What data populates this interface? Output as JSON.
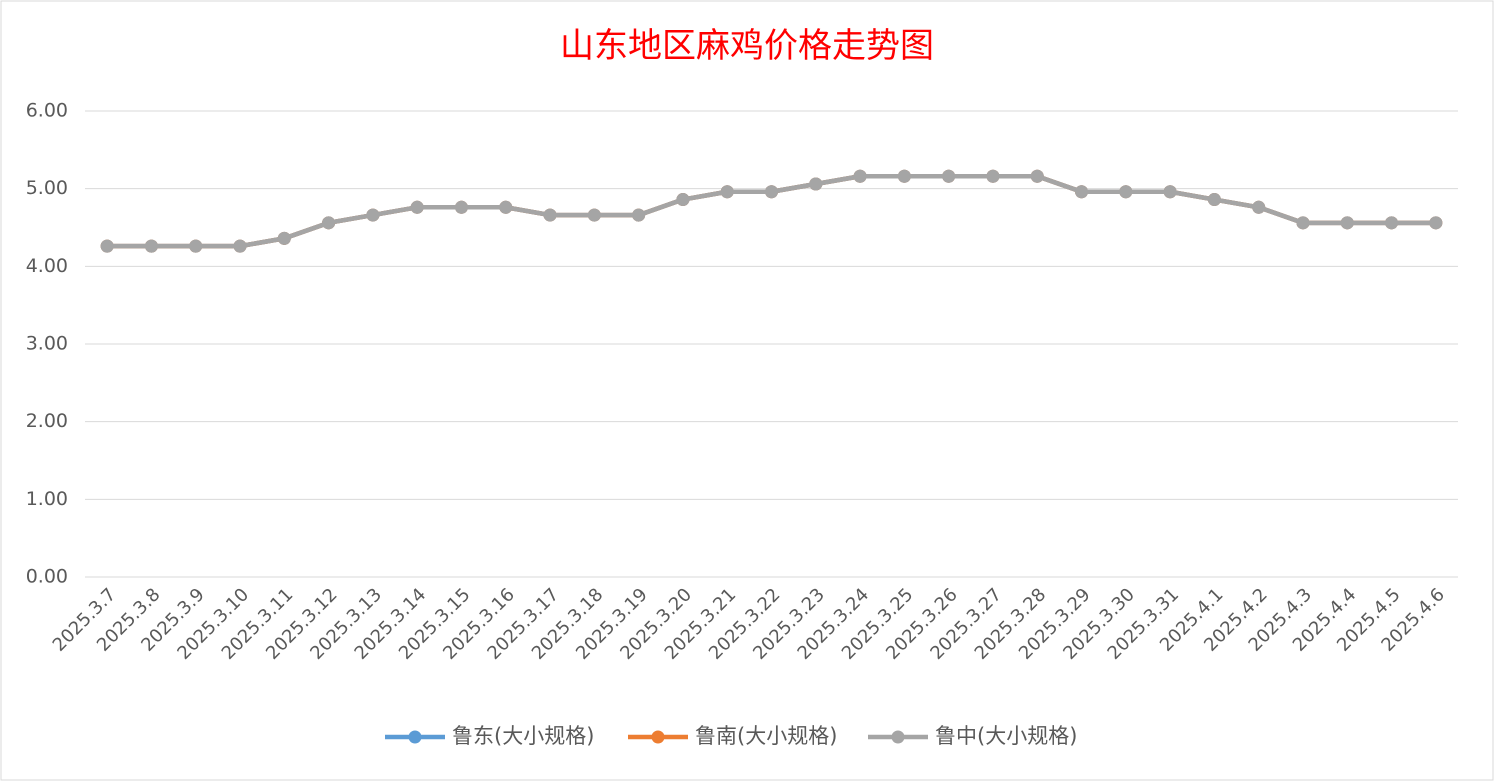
{
  "chart_data": {
    "type": "line",
    "title": "山东地区麻鸡价格走势图",
    "categories": [
      "2025.3.7",
      "2025.3.8",
      "2025.3.9",
      "2025.3.10",
      "2025.3.11",
      "2025.3.12",
      "2025.3.13",
      "2025.3.14",
      "2025.3.15",
      "2025.3.16",
      "2025.3.17",
      "2025.3.18",
      "2025.3.19",
      "2025.3.20",
      "2025.3.21",
      "2025.3.22",
      "2025.3.23",
      "2025.3.24",
      "2025.3.25",
      "2025.3.26",
      "2025.3.27",
      "2025.3.28",
      "2025.3.29",
      "2025.3.30",
      "2025.3.31",
      "2025.4.1",
      "2025.4.2",
      "2025.4.3",
      "2025.4.4",
      "2025.4.5",
      "2025.4.6"
    ],
    "series": [
      {
        "name": "鲁东(大小规格)",
        "color": "#5b9bd5",
        "values": [
          4.26,
          4.26,
          4.26,
          4.26,
          4.36,
          4.56,
          4.66,
          4.76,
          4.76,
          4.76,
          4.66,
          4.66,
          4.66,
          4.86,
          4.96,
          4.96,
          5.06,
          5.16,
          5.16,
          5.16,
          5.16,
          5.16,
          4.96,
          4.96,
          4.96,
          4.86,
          4.76,
          4.56,
          4.56,
          4.56,
          4.56
        ]
      },
      {
        "name": "鲁南(大小规格)",
        "color": "#ed7d31",
        "values": [
          4.26,
          4.26,
          4.26,
          4.26,
          4.36,
          4.56,
          4.66,
          4.76,
          4.76,
          4.76,
          4.66,
          4.66,
          4.66,
          4.86,
          4.96,
          4.96,
          5.06,
          5.16,
          5.16,
          5.16,
          5.16,
          5.16,
          4.96,
          4.96,
          4.96,
          4.86,
          4.76,
          4.56,
          4.56,
          4.56,
          4.56
        ]
      },
      {
        "name": "鲁中(大小规格)",
        "color": "#a5a5a5",
        "values": [
          4.26,
          4.26,
          4.26,
          4.26,
          4.36,
          4.56,
          4.66,
          4.76,
          4.76,
          4.76,
          4.66,
          4.66,
          4.66,
          4.86,
          4.96,
          4.96,
          5.06,
          5.16,
          5.16,
          5.16,
          5.16,
          5.16,
          4.96,
          4.96,
          4.96,
          4.86,
          4.76,
          4.56,
          4.56,
          4.56,
          4.56
        ]
      }
    ],
    "ylim": [
      0,
      6
    ],
    "yticks": [
      {
        "value": 0,
        "label": "0.00"
      },
      {
        "value": 1,
        "label": "1.00"
      },
      {
        "value": 2,
        "label": "2.00"
      },
      {
        "value": 3,
        "label": "3.00"
      },
      {
        "value": 4,
        "label": "4.00"
      },
      {
        "value": 5,
        "label": "5.00"
      },
      {
        "value": 6,
        "label": "6.00"
      }
    ],
    "grid": true,
    "legend": "bottom"
  }
}
